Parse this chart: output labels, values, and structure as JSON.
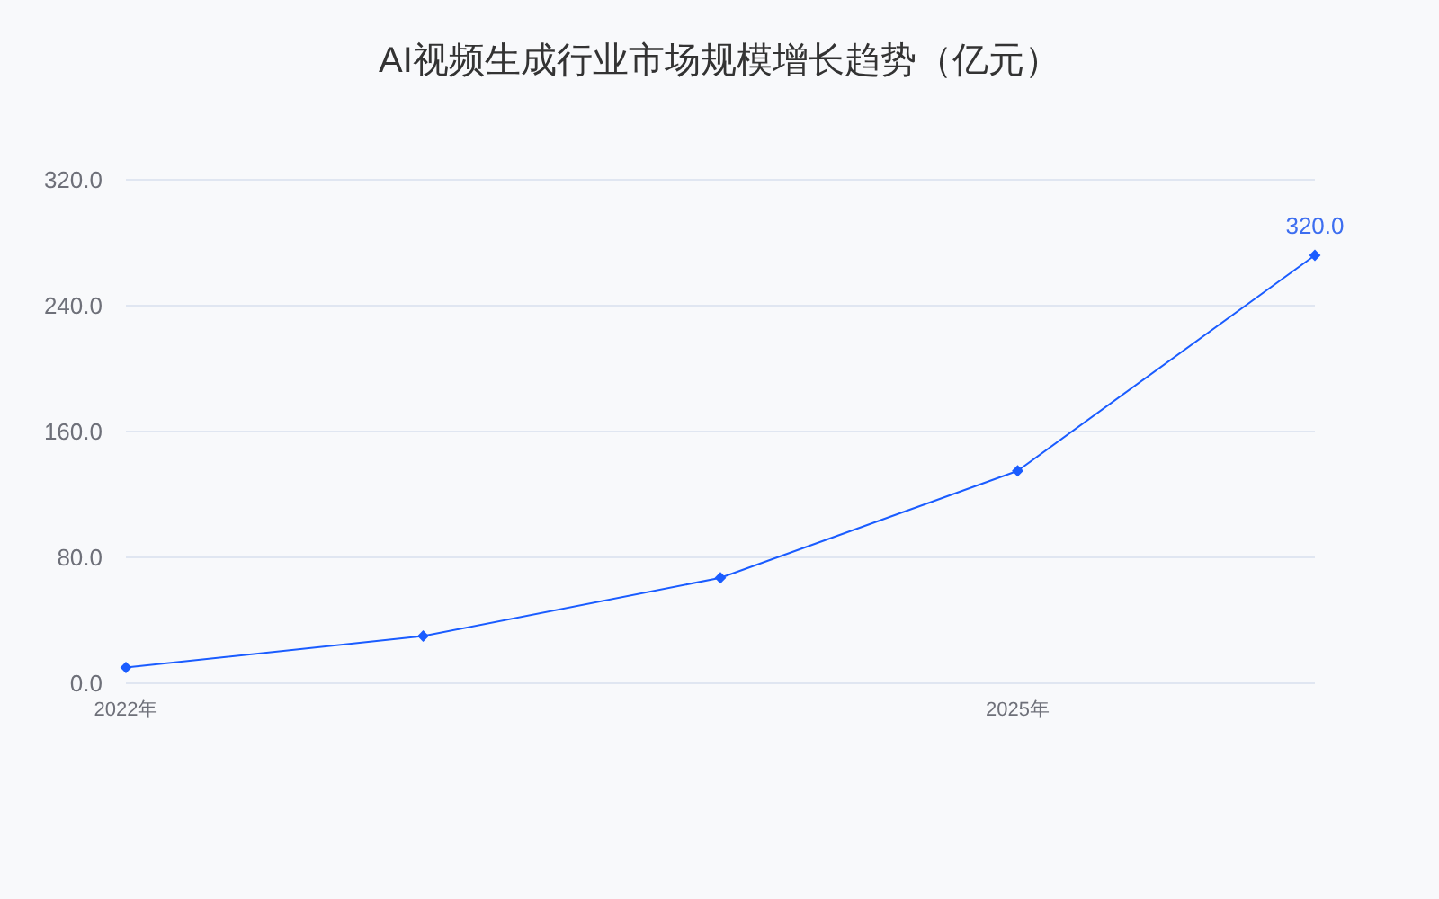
{
  "chart_data": {
    "type": "line",
    "title": "AI视频生成行业市场规模增长趋势（亿元）",
    "categories": [
      "2022年",
      null,
      null,
      "2025年",
      null
    ],
    "series": [
      {
        "color": "#1a5cff",
        "values": [
          10,
          30,
          67,
          135,
          272
        ]
      }
    ],
    "ylim": [
      0,
      320
    ],
    "yticks": [
      {
        "value": 0,
        "label": "0.0"
      },
      {
        "value": 80,
        "label": "80.0"
      },
      {
        "value": 160,
        "label": "160.0"
      },
      {
        "value": 240,
        "label": "240.0"
      },
      {
        "value": 320,
        "label": "320.0"
      }
    ],
    "grid": "y",
    "marker": "diamond",
    "line_style": "solid",
    "annotations": [
      "320.0"
    ]
  }
}
